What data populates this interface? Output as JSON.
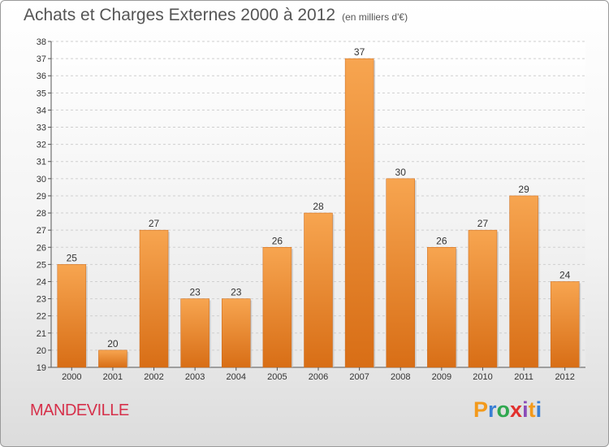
{
  "header": {
    "title": "Achats et Charges Externes 2000 à 2012",
    "unit": "(en milliers d'€)"
  },
  "footer": {
    "commune": "MANDEVILLE",
    "logo_text": [
      "P",
      "r",
      "o",
      "x",
      "i",
      "t",
      "i"
    ],
    "logo_colors": [
      "#f39a1c",
      "#3a7fd4",
      "#2fa84f",
      "#e2302d",
      "#8a4bb8",
      "#f39a1c",
      "#3a7fd4"
    ]
  },
  "colors": {
    "bar_light": "#f7a550",
    "bar_dark": "#d86e16",
    "commune": "#d6304a"
  },
  "chart_data": {
    "type": "bar",
    "title": "Achats et Charges Externes 2000 à 2012",
    "subtitle": "(en milliers d'€)",
    "categories": [
      "2000",
      "2001",
      "2002",
      "2003",
      "2004",
      "2005",
      "2006",
      "2007",
      "2008",
      "2009",
      "2010",
      "2011",
      "2012"
    ],
    "values": [
      25,
      20,
      27,
      23,
      23,
      26,
      28,
      37,
      30,
      26,
      27,
      29,
      24
    ],
    "ylim": [
      19,
      38
    ],
    "yticks": [
      19,
      20,
      21,
      22,
      23,
      24,
      25,
      26,
      27,
      28,
      29,
      30,
      31,
      32,
      33,
      34,
      35,
      36,
      37,
      38
    ],
    "grid": true,
    "data_labels": true
  }
}
